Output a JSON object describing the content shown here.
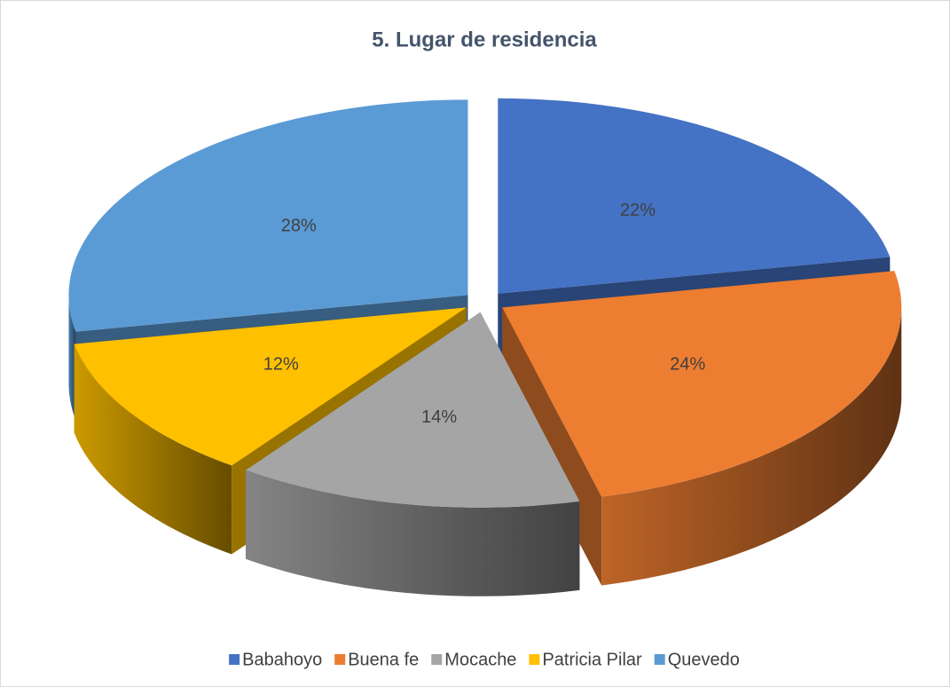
{
  "chart_data": {
    "type": "pie",
    "title": "5. Lugar de residencia",
    "categories": [
      "Babahoyo",
      "Buena fe",
      "Mocache",
      "Patricia Pilar",
      "Quevedo"
    ],
    "values": [
      22,
      24,
      14,
      12,
      28
    ],
    "value_labels": [
      "22%",
      "24%",
      "14%",
      "12%",
      "28%"
    ],
    "colors": [
      "#4472c4",
      "#ed7d31",
      "#a5a5a5",
      "#ffc000",
      "#5b9bd5"
    ],
    "legend": "bottom"
  }
}
